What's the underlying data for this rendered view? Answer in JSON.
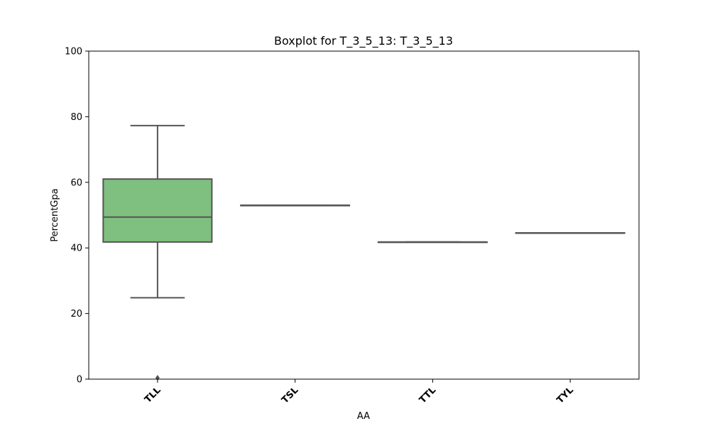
{
  "chart_data": {
    "type": "boxplot",
    "title": "Boxplot for T_3_5_13: T_3_5_13",
    "xlabel": "AA",
    "ylabel": "PercentGpa",
    "ylim": [
      0,
      100
    ],
    "yticks": [
      0,
      20,
      40,
      60,
      80,
      100
    ],
    "categories": [
      "TLL",
      "TSL",
      "TTL",
      "TYL"
    ],
    "boxes": [
      {
        "category": "TLL",
        "whisker_low": 24.8,
        "q1": 41.8,
        "median": 49.4,
        "q3": 61.0,
        "whisker_high": 77.3,
        "outliers": [
          0.4
        ]
      },
      {
        "category": "TSL",
        "whisker_low": 53.0,
        "q1": 53.0,
        "median": 53.0,
        "q3": 53.0,
        "whisker_high": 53.0,
        "outliers": []
      },
      {
        "category": "TTL",
        "whisker_low": 41.8,
        "q1": 41.8,
        "median": 41.8,
        "q3": 41.8,
        "whisker_high": 41.8,
        "outliers": []
      },
      {
        "category": "TYL",
        "whisker_low": 44.6,
        "q1": 44.6,
        "median": 44.6,
        "q3": 44.6,
        "whisker_high": 44.6,
        "outliers": []
      }
    ],
    "box_color": "#7fbf7f",
    "line_color": "#555555",
    "grid": false,
    "legend": "none"
  }
}
